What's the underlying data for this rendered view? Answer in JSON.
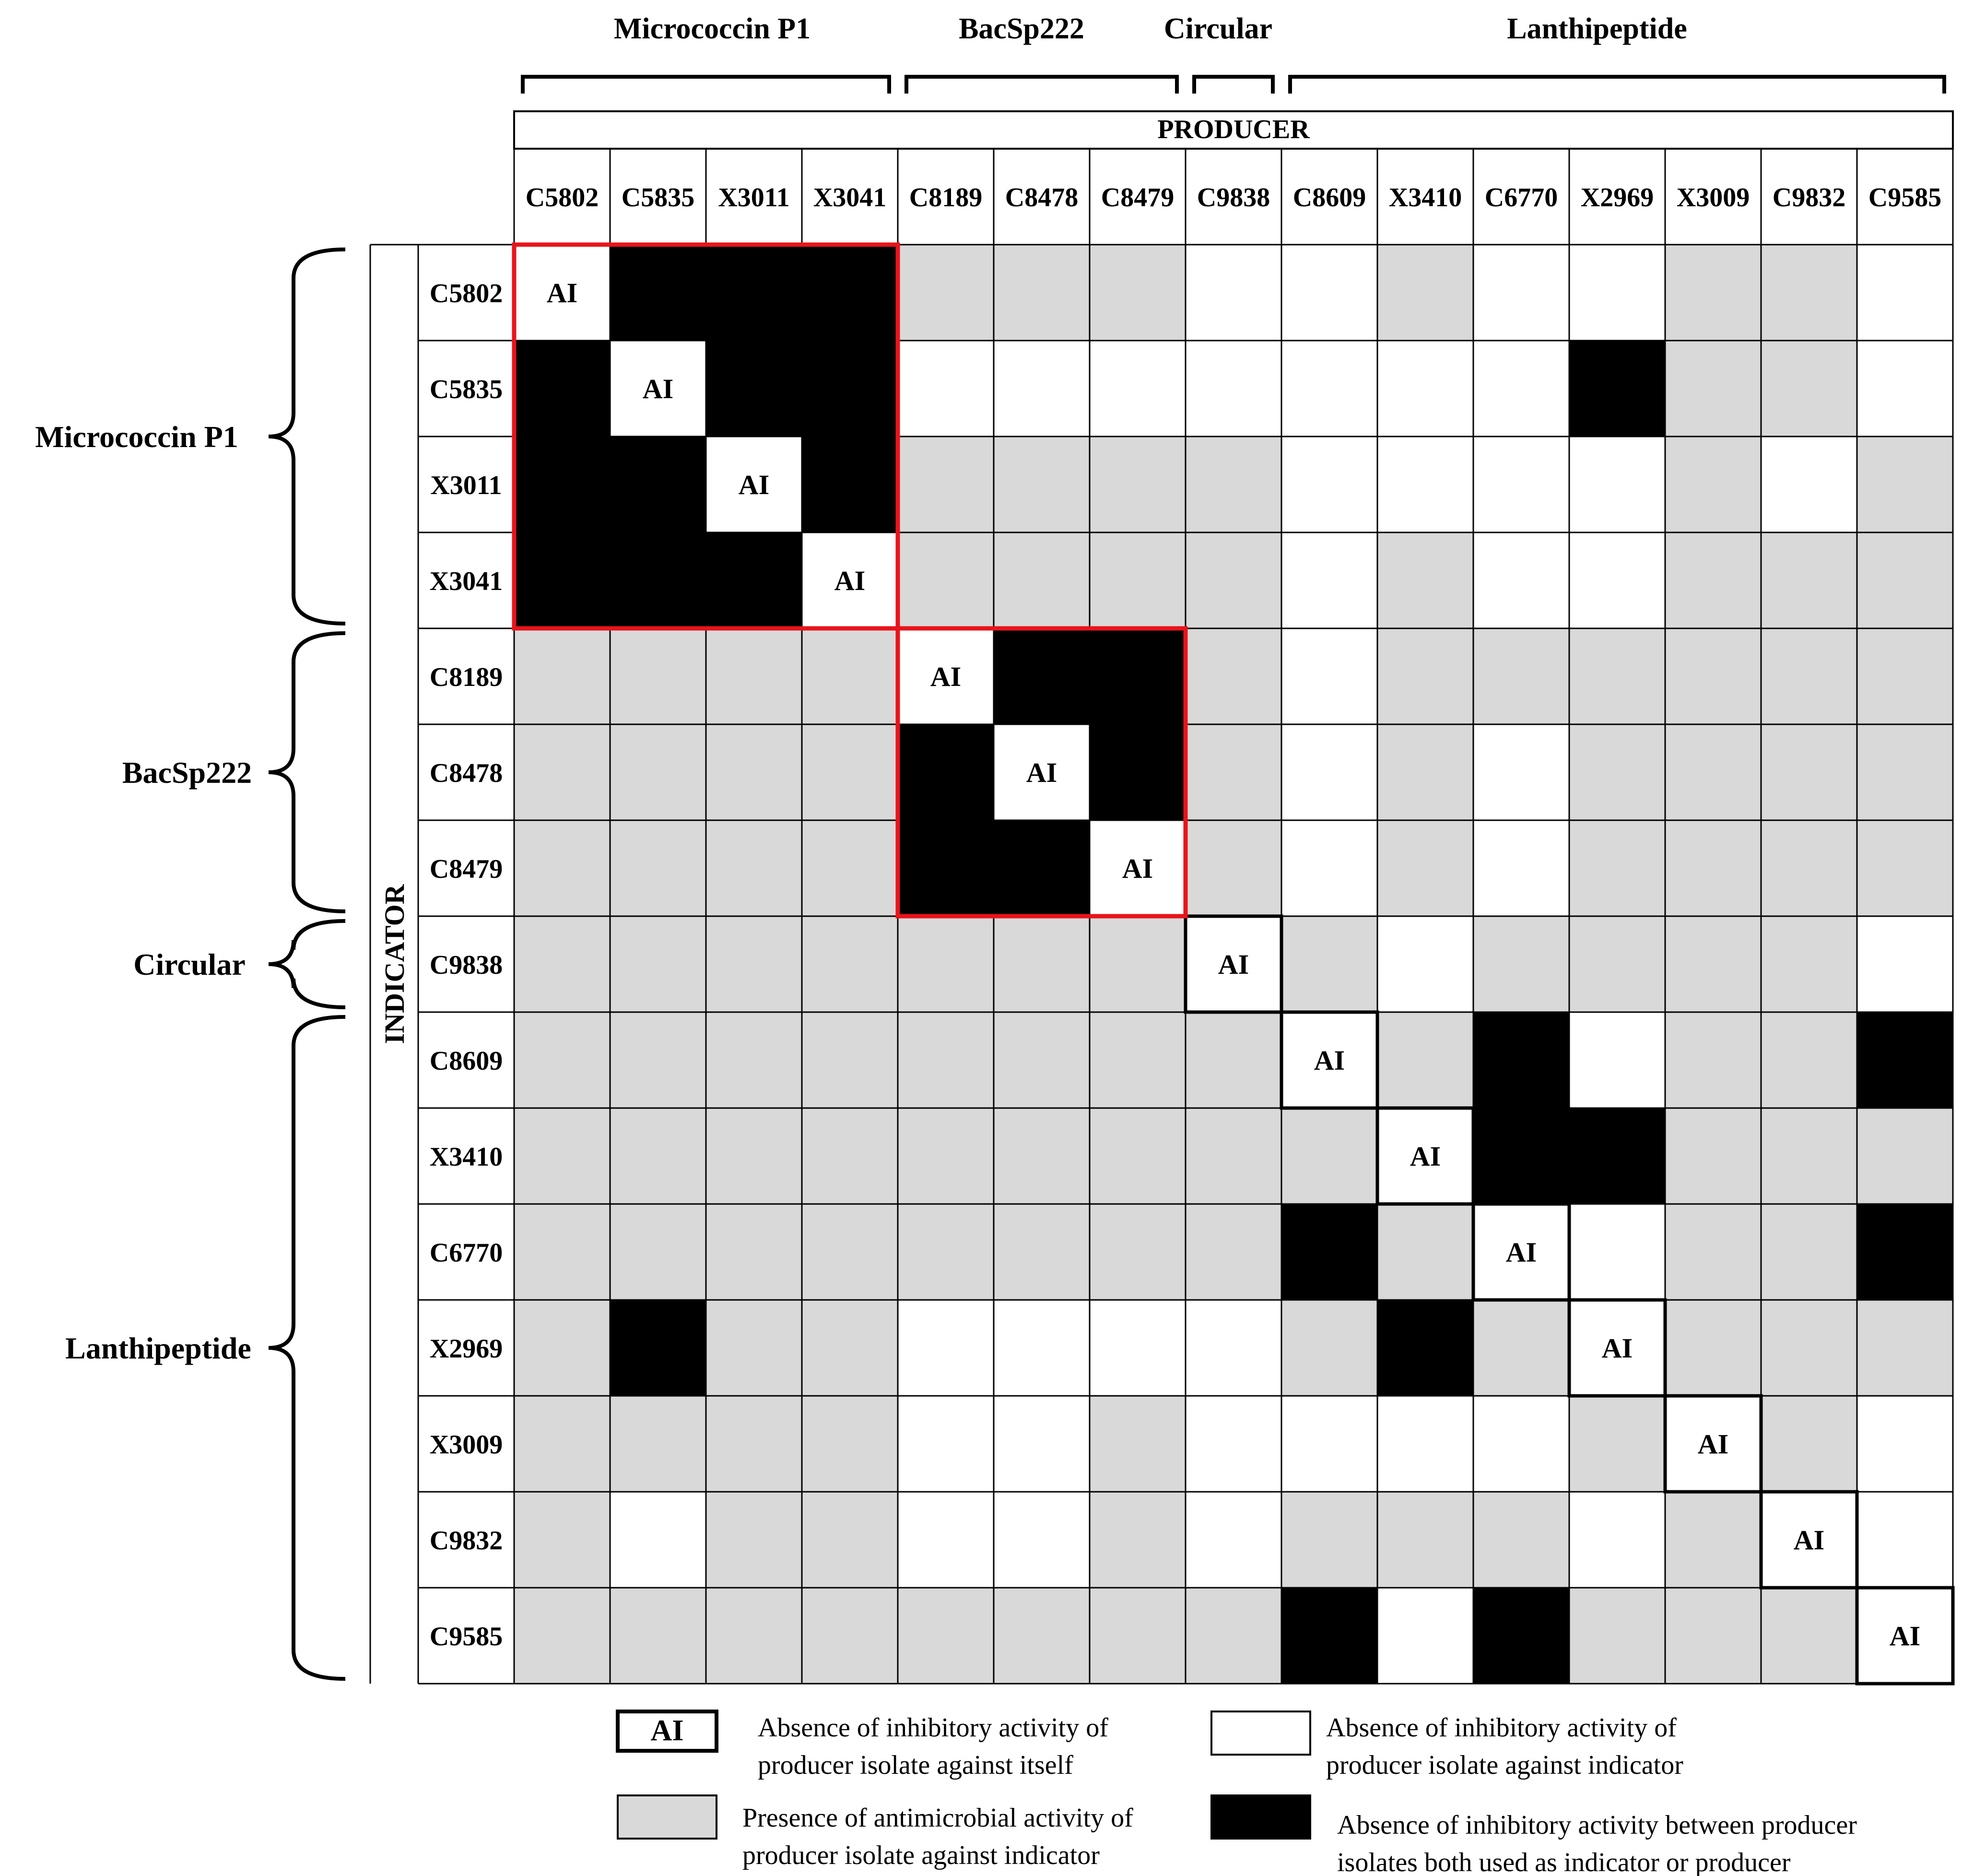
{
  "column_groups": [
    {
      "label": "Micrococcin P1",
      "start": 0,
      "end": 3
    },
    {
      "label": "BacSp222",
      "start": 4,
      "end": 6
    },
    {
      "label": "Circular",
      "start": 7,
      "end": 7
    },
    {
      "label": "Lanthipeptide",
      "start": 8,
      "end": 14
    }
  ],
  "row_groups": [
    {
      "label": "Micrococcin P1",
      "start": 0,
      "end": 3
    },
    {
      "label": "BacSp222",
      "start": 4,
      "end": 6
    },
    {
      "label": "Circular",
      "start": 7,
      "end": 7
    },
    {
      "label": "Lanthipeptide",
      "start": 8,
      "end": 14
    }
  ],
  "producer_label": "PRODUCER",
  "indicator_label": "INDICATOR",
  "isolates": [
    "C5802",
    "C5835",
    "X3011",
    "X3041",
    "C8189",
    "C8478",
    "C8479",
    "C9838",
    "C8609",
    "X3410",
    "C6770",
    "X2969",
    "X3009",
    "C9832",
    "C9585"
  ],
  "matrix_codes": {
    "A": "AI",
    "B": "black",
    "W": "white",
    "G": "gray"
  },
  "matrix": [
    "ABBBGGGWWGWWGGW",
    "BABBWWWWWWWBGGW",
    "BBABGGGGWWWWGWG",
    "BBBAGGGGWGWWGGG",
    "GGGGABBGWGGGGGG",
    "GGGGBABGWGWGGGG",
    "GGGGBBAGWGWGGGG",
    "GGGGGGGAGWGGGGW",
    "GGGGGGGGAGBWGGB",
    "GGGGGGGGGABBGGG",
    "GGGGGGGGBGAWGGB",
    "GBGGWWWWGBGAGGG",
    "GGGGWWGWWWWGAGW",
    "GWGGWWGWGGGWGAW",
    "GGGGGGGGBWBGGGA"
  ],
  "highlight_boxes": [
    {
      "start": 0,
      "end": 3,
      "color": "#e8141b"
    },
    {
      "start": 4,
      "end": 6,
      "color": "#e8141b"
    }
  ],
  "colors": {
    "black": "#000000",
    "gray": "#d9d9d9",
    "white": "#ffffff",
    "highlight": "#e8141b"
  },
  "legend": [
    {
      "key": "ai",
      "symbol": "AI",
      "lines": [
        "Absence of inhibitory activity of",
        "producer isolate against itself"
      ]
    },
    {
      "key": "white",
      "lines": [
        "Absence of inhibitory activity of",
        "producer isolate against indicator"
      ]
    },
    {
      "key": "gray",
      "lines": [
        "Presence of antimicrobial activity of",
        "producer isolate against indicator"
      ]
    },
    {
      "key": "black",
      "lines": [
        "Absence of inhibitory activity between producer",
        "isolates both used as indicator or producer"
      ]
    }
  ]
}
